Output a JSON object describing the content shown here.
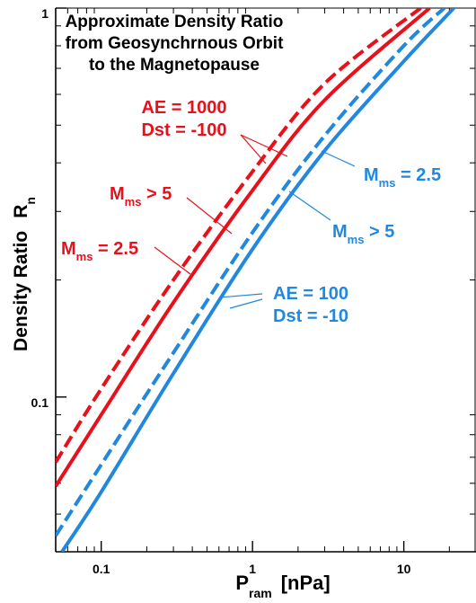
{
  "chart_data": {
    "type": "line",
    "title": [
      "Approximate Density Ratio",
      "from Geosynchrnous Orbit",
      "to the Magnetopause"
    ],
    "xlabel": {
      "main": "P",
      "sub": "ram",
      "unit": "[nPa]"
    },
    "ylabel": {
      "main": "Density Ratio",
      "symbol": "R",
      "sub": "n"
    },
    "x_scale": "log",
    "y_scale": "log",
    "xlim": [
      0.05,
      30
    ],
    "ylim": [
      0.04,
      1
    ],
    "x_ticks": [
      {
        "value": 0.1,
        "label": "0.1"
      },
      {
        "value": 1,
        "label": "1"
      },
      {
        "value": 10,
        "label": "10"
      }
    ],
    "y_ticks": [
      {
        "value": 0.1,
        "label": "0.1"
      },
      {
        "value": 1,
        "label": "1"
      }
    ],
    "grid": false,
    "series": [
      {
        "color": "#e8101a",
        "dash": true,
        "x": [
          0.05,
          0.1,
          0.3,
          1,
          3,
          12.9
        ],
        "y": [
          0.068,
          0.105,
          0.2,
          0.38,
          0.64,
          1.0
        ]
      },
      {
        "color": "#e8101a",
        "dash": false,
        "x": [
          0.05,
          0.1,
          0.3,
          1,
          3,
          14.8
        ],
        "y": [
          0.059,
          0.09,
          0.175,
          0.34,
          0.58,
          1.0
        ]
      },
      {
        "color": "#2188dd",
        "dash": true,
        "x": [
          0.05,
          0.1,
          0.3,
          1,
          3,
          10,
          18.5
        ],
        "y": [
          0.044,
          0.067,
          0.13,
          0.265,
          0.47,
          0.8,
          1.0
        ]
      },
      {
        "color": "#2188dd",
        "dash": false,
        "x": [
          0.055,
          0.1,
          0.3,
          1,
          3,
          10,
          21.4
        ],
        "y": [
          0.04,
          0.057,
          0.115,
          0.24,
          0.43,
          0.73,
          1.0
        ]
      }
    ],
    "annotations": {
      "red_ae": "AE = 1000",
      "red_dst": "Dst = -100",
      "red_m5": {
        "main": "M",
        "sub": "ms",
        "rest": " > 5"
      },
      "red_m25": {
        "main": "M",
        "sub": "ms",
        "rest": " = 2.5"
      },
      "blue_m25": {
        "main": "M",
        "sub": "ms",
        "rest": " = 2.5"
      },
      "blue_m5": {
        "main": "M",
        "sub": "ms",
        "rest": " > 5"
      },
      "blue_ae": "AE = 100",
      "blue_dst": "Dst = -10"
    },
    "colors": {
      "red": "#e8101a",
      "blue": "#2188dd"
    }
  }
}
